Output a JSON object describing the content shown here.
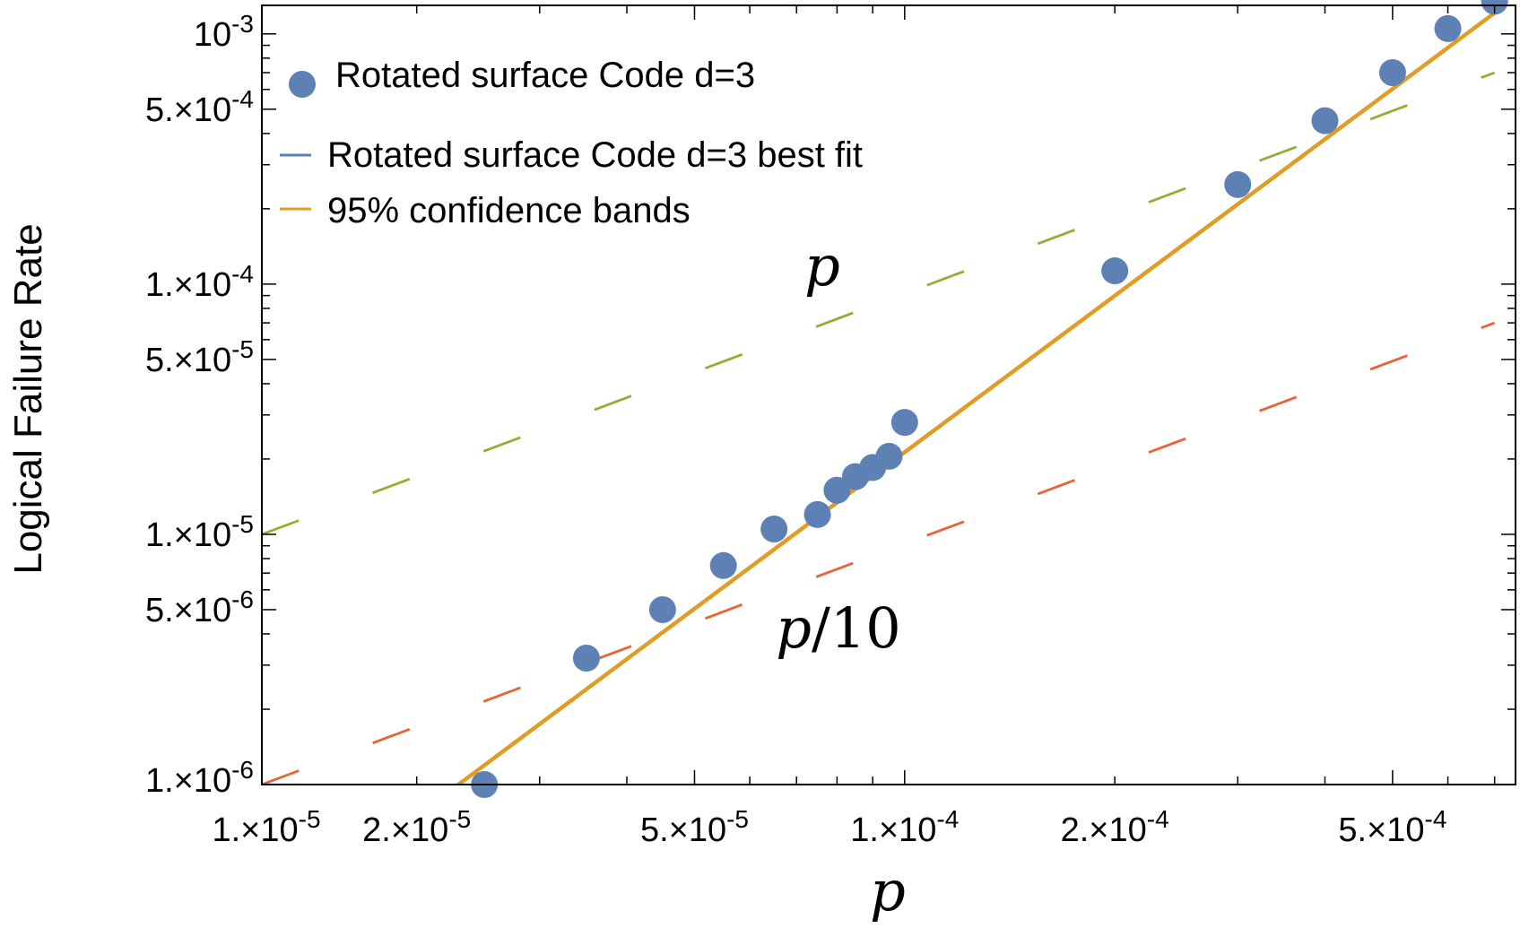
{
  "chart_data": {
    "type": "scatter",
    "xscale": "log",
    "yscale": "log",
    "xlim": [
      1.2e-05,
      0.00075
    ],
    "ylim": [
      1e-06,
      0.0013
    ],
    "xlabel": "p",
    "ylabel": "Logical Failure Rate",
    "x_ticks": [
      {
        "value": 1e-05,
        "mant": "1.",
        "exp": "-5"
      },
      {
        "value": 2e-05,
        "mant": "2.",
        "exp": "-5"
      },
      {
        "value": 5e-05,
        "mant": "5.",
        "exp": "-5"
      },
      {
        "value": 0.0001,
        "mant": "1.",
        "exp": "-4"
      },
      {
        "value": 0.0002,
        "mant": "2.",
        "exp": "-4"
      },
      {
        "value": 0.0005,
        "mant": "5.",
        "exp": "-4"
      }
    ],
    "y_ticks": [
      {
        "value": 0.001,
        "mant": "",
        "exp": "-3"
      },
      {
        "value": 0.0005,
        "mant": "5.",
        "exp": "-4"
      },
      {
        "value": 0.0001,
        "mant": "1.",
        "exp": "-4"
      },
      {
        "value": 5e-05,
        "mant": "5.",
        "exp": "-5"
      },
      {
        "value": 1e-05,
        "mant": "1.",
        "exp": "-5"
      },
      {
        "value": 5e-06,
        "mant": "5.",
        "exp": "-6"
      },
      {
        "value": 1e-06,
        "mant": "1.",
        "exp": "-6"
      }
    ],
    "tick_base": "10",
    "times_sign": "×",
    "series": [
      {
        "name": "Rotated surface Code d=3",
        "kind": "points",
        "color": "#5e81b5",
        "x": [
          2.5e-05,
          3.5e-05,
          4.5e-05,
          5.5e-05,
          6.5e-05,
          7.5e-05,
          8e-05,
          8.5e-05,
          9e-05,
          9.5e-05,
          0.0001,
          0.0002,
          0.0003,
          0.0004,
          0.0005,
          0.0006,
          0.0007
        ],
        "y": [
          1e-06,
          3.2e-06,
          5e-06,
          7.5e-06,
          1.05e-05,
          1.2e-05,
          1.5e-05,
          1.7e-05,
          1.85e-05,
          2.05e-05,
          2.8e-05,
          0.000113,
          0.00025,
          0.00045,
          0.0007,
          0.00105,
          0.00135
        ]
      },
      {
        "name": "Rotated surface Code d=3 best fit",
        "kind": "line",
        "color": "#5e81b5",
        "x": [
          1.2e-05,
          0.00075
        ],
        "y": [
          2.6e-07,
          0.0014
        ]
      },
      {
        "name": "95% confidence bands",
        "kind": "line",
        "color": "#e19c24",
        "x": [
          1.2e-05,
          0.00075
        ],
        "y": [
          2.6e-07,
          0.0014
        ]
      },
      {
        "name": "p",
        "kind": "dashed",
        "color": "#8fb032",
        "x": [
          1.2e-05,
          0.0007
        ],
        "y": [
          1e-05,
          0.0007
        ]
      },
      {
        "name": "p/10",
        "kind": "dashed",
        "color": "#eb6235",
        "x": [
          1.2e-05,
          0.0007
        ],
        "y": [
          1e-06,
          7e-05
        ]
      }
    ],
    "annotations": [
      {
        "text": "p",
        "x": 0.0001,
        "y": 0.000125
      },
      {
        "text": "p/10",
        "x": 0.0001,
        "y": 5e-06
      }
    ],
    "legend": {
      "position": "top-left",
      "entries": [
        {
          "label": "Rotated surface Code d=3",
          "marker": "point",
          "color": "#5e81b5"
        },
        {
          "label": "Rotated surface Code d=3 best fit",
          "marker": "line",
          "color": "#5e81b5"
        },
        {
          "label": "95% confidence bands",
          "marker": "line",
          "color": "#e19c24"
        }
      ]
    }
  }
}
